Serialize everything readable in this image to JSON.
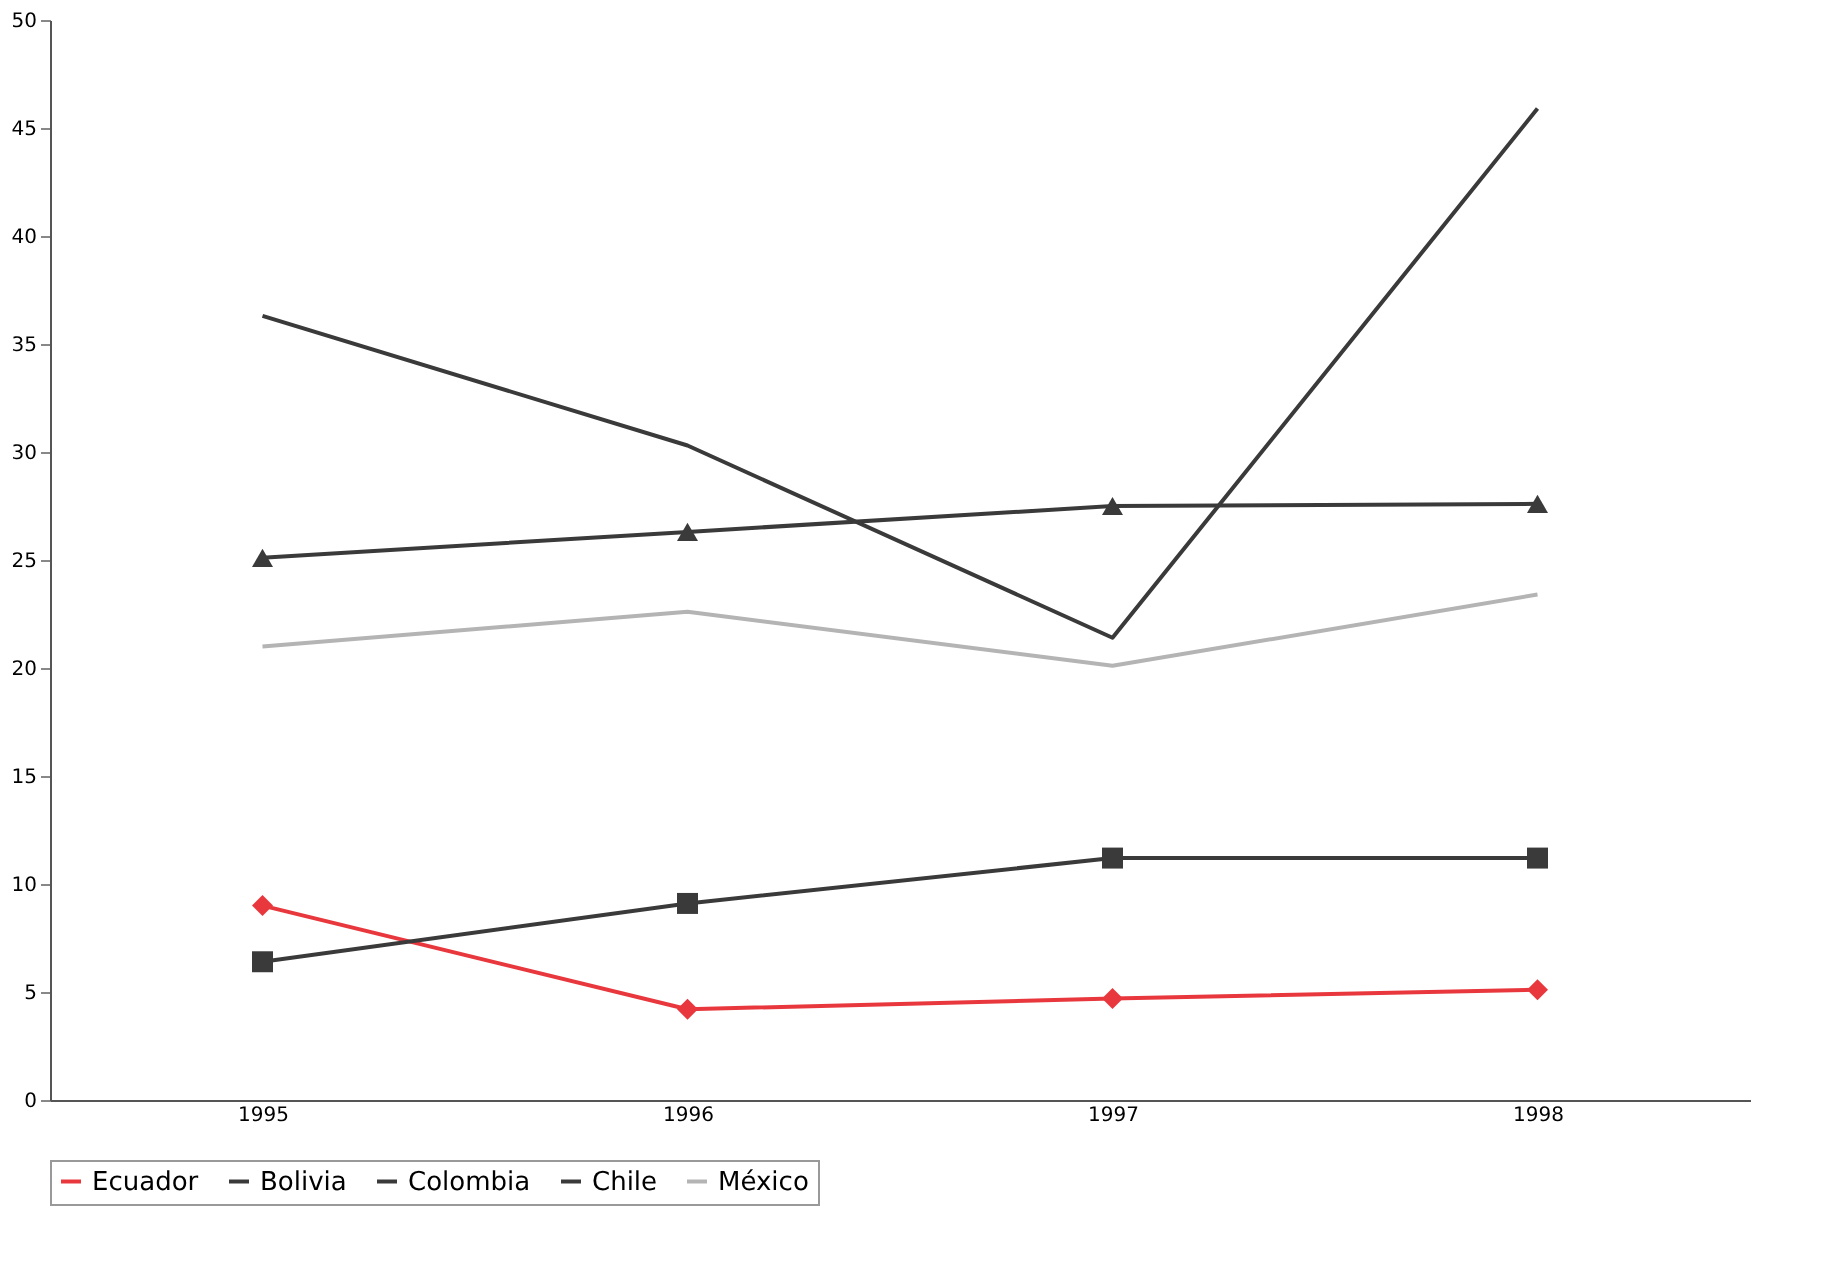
{
  "chart_data": {
    "type": "line",
    "categories": [
      "1995",
      "1996",
      "1997",
      "1998"
    ],
    "series": [
      {
        "name": "Ecuador",
        "color": "#e8383d",
        "marker": "diamond",
        "values": [
          9.0,
          4.2,
          4.7,
          5.1
        ]
      },
      {
        "name": "Bolivia",
        "color": "#3a3a3a",
        "marker": "triangle",
        "values": [
          25.1,
          26.3,
          27.5,
          27.6
        ]
      },
      {
        "name": "Colombia",
        "color": "#3a3a3a",
        "marker": "none",
        "values": [
          36.3,
          30.3,
          21.4,
          45.9
        ]
      },
      {
        "name": "Chile",
        "color": "#3a3a3a",
        "marker": "square",
        "values": [
          6.4,
          9.1,
          11.2,
          11.2
        ]
      },
      {
        "name": "México",
        "color": "#b4b4b4",
        "marker": "none",
        "values": [
          21.0,
          22.6,
          20.1,
          23.4
        ]
      }
    ],
    "ylim": [
      0,
      50
    ],
    "yticks": [
      0,
      5,
      10,
      15,
      20,
      25,
      30,
      35,
      40,
      45,
      50
    ],
    "grid": false,
    "legend": "bottom",
    "line_style": "solid"
  }
}
